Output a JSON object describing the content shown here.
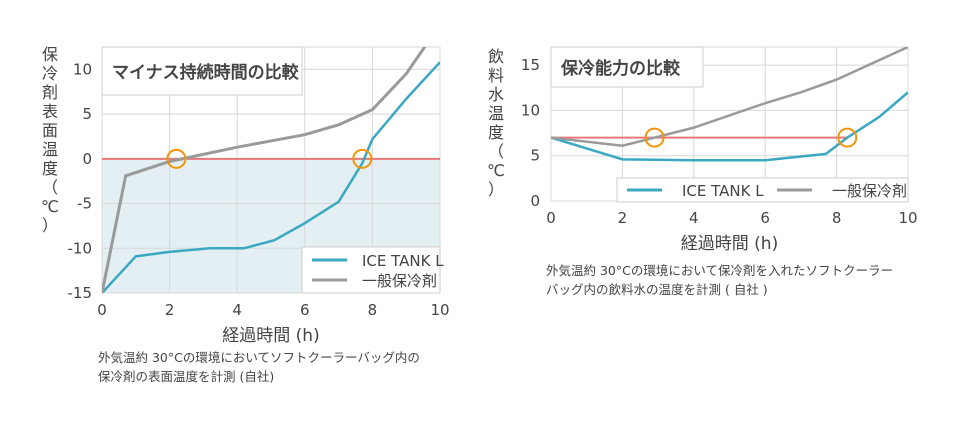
{
  "colors": {
    "ice": "#3aa8c1",
    "general": "#9a9a9a",
    "threshold": "#e87878",
    "marker": "#f0960a",
    "fill": "#e3eff3",
    "grid": "#d8d8d8"
  },
  "chart_data": [
    {
      "type": "line",
      "title": "マイナス持続時間の比較",
      "xlabel": "経過時間 (h)",
      "ylabel": "保冷剤表面温度（℃）",
      "xlim": [
        0,
        10
      ],
      "ylim": [
        -15,
        12.5
      ],
      "xticks": [
        "0",
        "2",
        "4",
        "6",
        "8",
        "10"
      ],
      "yticks": [
        "10",
        "5",
        "0",
        "-5",
        "-10",
        "-15"
      ],
      "grid": true,
      "legend": "bottom-right",
      "threshold": 0,
      "markers": [
        [
          2.2,
          0
        ],
        [
          7.7,
          0
        ]
      ],
      "series": [
        {
          "name": "ICE TANK L",
          "x": [
            0,
            1,
            2,
            3.2,
            4.2,
            5.1,
            6,
            7,
            7.7,
            8,
            9,
            10
          ],
          "y": [
            -15,
            -10.9,
            -10.4,
            -10,
            -10,
            -9.1,
            -7.2,
            -4.8,
            -0.5,
            2.2,
            6.7,
            10.8
          ]
        },
        {
          "name": "一般保冷剤",
          "x": [
            0,
            0.7,
            2,
            4,
            5,
            6,
            7,
            8,
            9,
            10
          ],
          "y": [
            -15,
            -1.9,
            -0.3,
            1.3,
            2,
            2.7,
            3.8,
            5.5,
            9.5,
            15
          ]
        }
      ],
      "note": "外気温約 30°Cの環境においてソフトクーラーバッグ内の\n保冷剤の表面温度を計測 (自社)"
    },
    {
      "type": "line",
      "title": "保冷能力の比較",
      "xlabel": "経過時間 (h)",
      "ylabel": "飲料水温度（℃）",
      "xlim": [
        0,
        10
      ],
      "ylim": [
        0,
        17
      ],
      "xticks": [
        "0",
        "2",
        "4",
        "6",
        "8",
        "10"
      ],
      "yticks": [
        "15",
        "10",
        "5",
        "0"
      ],
      "grid": true,
      "legend": "bottom",
      "threshold": 7,
      "markers": [
        [
          2.9,
          7
        ],
        [
          8.3,
          7
        ]
      ],
      "series": [
        {
          "name": "ICE TANK L",
          "x": [
            0,
            2,
            4,
            6,
            7.7,
            8.3,
            9.2,
            10
          ],
          "y": [
            7,
            4.6,
            4.5,
            4.5,
            5.2,
            7,
            9.3,
            12
          ]
        },
        {
          "name": "一般保冷剤",
          "x": [
            0,
            2,
            4,
            6,
            7,
            8,
            9,
            10
          ],
          "y": [
            7,
            6.1,
            8.1,
            10.8,
            12,
            13.4,
            15.2,
            17
          ]
        }
      ],
      "note": "外気温約 30°Cの環境において保冷剤を入れたソフトクーラー\nバッグ内の飲料水の温度を計測 ( 自社 )"
    }
  ]
}
